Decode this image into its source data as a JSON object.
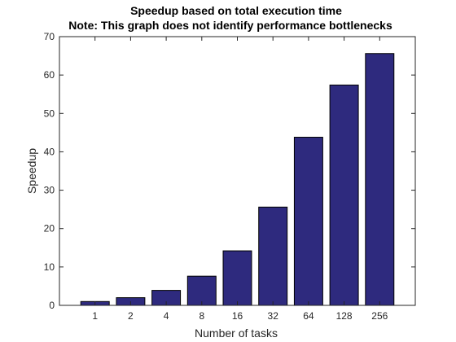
{
  "chart_data": {
    "type": "bar",
    "title": "Speedup based on total execution time",
    "subtitle": "Note: This graph does not identify performance bottlenecks",
    "xlabel": "Number of tasks",
    "ylabel": "Speedup",
    "categories": [
      "1",
      "2",
      "4",
      "8",
      "16",
      "32",
      "64",
      "128",
      "256"
    ],
    "values": [
      1.0,
      2.0,
      3.9,
      7.6,
      14.2,
      25.6,
      43.8,
      57.4,
      65.6
    ],
    "ylim": [
      0,
      70
    ],
    "yticks": [
      0,
      10,
      20,
      30,
      40,
      50,
      60,
      70
    ],
    "grid": false,
    "bar_color": "#2e2a7e",
    "bar_edge_color": "#000000",
    "axis_color": "#262626"
  }
}
